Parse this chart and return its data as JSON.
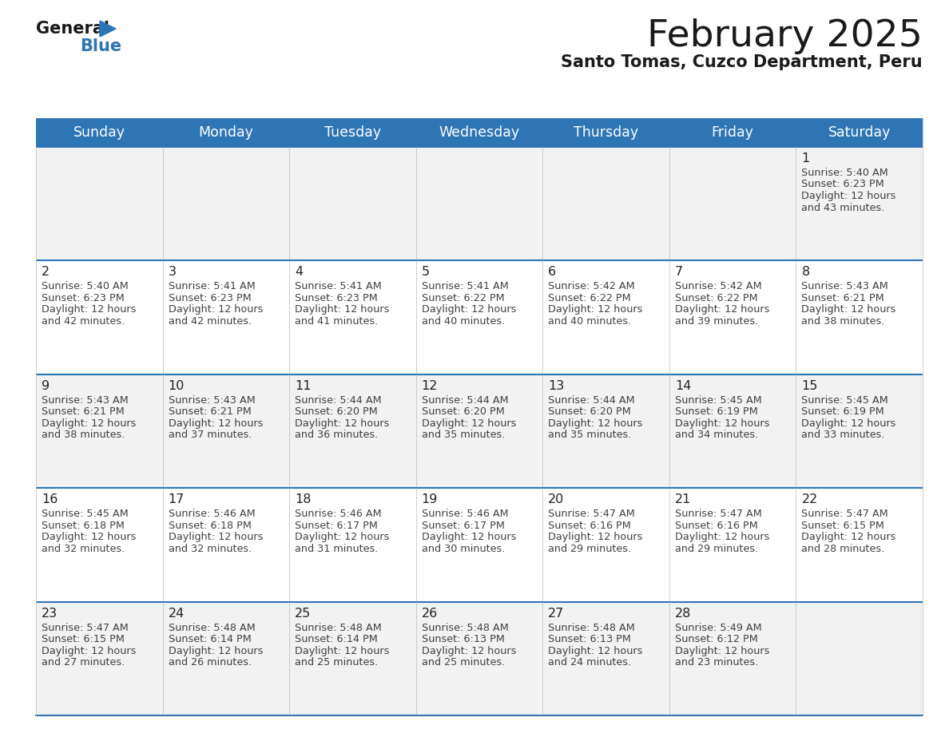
{
  "title": "February 2025",
  "subtitle": "Santo Tomas, Cuzco Department, Peru",
  "days_of_week": [
    "Sunday",
    "Monday",
    "Tuesday",
    "Wednesday",
    "Thursday",
    "Friday",
    "Saturday"
  ],
  "header_bg": "#2e75b6",
  "header_text": "#ffffff",
  "border_color": "#2e75b6",
  "row_bg_odd": "#f2f2f2",
  "row_bg_even": "#ffffff",
  "text_color": "#404040",
  "calendar": [
    [
      null,
      null,
      null,
      null,
      null,
      null,
      {
        "day": "1",
        "sunrise": "5:40 AM",
        "sunset": "6:23 PM",
        "daylight": "12 hours",
        "daylight2": "and 43 minutes."
      }
    ],
    [
      {
        "day": "2",
        "sunrise": "5:40 AM",
        "sunset": "6:23 PM",
        "daylight": "12 hours",
        "daylight2": "and 42 minutes."
      },
      {
        "day": "3",
        "sunrise": "5:41 AM",
        "sunset": "6:23 PM",
        "daylight": "12 hours",
        "daylight2": "and 42 minutes."
      },
      {
        "day": "4",
        "sunrise": "5:41 AM",
        "sunset": "6:23 PM",
        "daylight": "12 hours",
        "daylight2": "and 41 minutes."
      },
      {
        "day": "5",
        "sunrise": "5:41 AM",
        "sunset": "6:22 PM",
        "daylight": "12 hours",
        "daylight2": "and 40 minutes."
      },
      {
        "day": "6",
        "sunrise": "5:42 AM",
        "sunset": "6:22 PM",
        "daylight": "12 hours",
        "daylight2": "and 40 minutes."
      },
      {
        "day": "7",
        "sunrise": "5:42 AM",
        "sunset": "6:22 PM",
        "daylight": "12 hours",
        "daylight2": "and 39 minutes."
      },
      {
        "day": "8",
        "sunrise": "5:43 AM",
        "sunset": "6:21 PM",
        "daylight": "12 hours",
        "daylight2": "and 38 minutes."
      }
    ],
    [
      {
        "day": "9",
        "sunrise": "5:43 AM",
        "sunset": "6:21 PM",
        "daylight": "12 hours",
        "daylight2": "and 38 minutes."
      },
      {
        "day": "10",
        "sunrise": "5:43 AM",
        "sunset": "6:21 PM",
        "daylight": "12 hours",
        "daylight2": "and 37 minutes."
      },
      {
        "day": "11",
        "sunrise": "5:44 AM",
        "sunset": "6:20 PM",
        "daylight": "12 hours",
        "daylight2": "and 36 minutes."
      },
      {
        "day": "12",
        "sunrise": "5:44 AM",
        "sunset": "6:20 PM",
        "daylight": "12 hours",
        "daylight2": "and 35 minutes."
      },
      {
        "day": "13",
        "sunrise": "5:44 AM",
        "sunset": "6:20 PM",
        "daylight": "12 hours",
        "daylight2": "and 35 minutes."
      },
      {
        "day": "14",
        "sunrise": "5:45 AM",
        "sunset": "6:19 PM",
        "daylight": "12 hours",
        "daylight2": "and 34 minutes."
      },
      {
        "day": "15",
        "sunrise": "5:45 AM",
        "sunset": "6:19 PM",
        "daylight": "12 hours",
        "daylight2": "and 33 minutes."
      }
    ],
    [
      {
        "day": "16",
        "sunrise": "5:45 AM",
        "sunset": "6:18 PM",
        "daylight": "12 hours",
        "daylight2": "and 32 minutes."
      },
      {
        "day": "17",
        "sunrise": "5:46 AM",
        "sunset": "6:18 PM",
        "daylight": "12 hours",
        "daylight2": "and 32 minutes."
      },
      {
        "day": "18",
        "sunrise": "5:46 AM",
        "sunset": "6:17 PM",
        "daylight": "12 hours",
        "daylight2": "and 31 minutes."
      },
      {
        "day": "19",
        "sunrise": "5:46 AM",
        "sunset": "6:17 PM",
        "daylight": "12 hours",
        "daylight2": "and 30 minutes."
      },
      {
        "day": "20",
        "sunrise": "5:47 AM",
        "sunset": "6:16 PM",
        "daylight": "12 hours",
        "daylight2": "and 29 minutes."
      },
      {
        "day": "21",
        "sunrise": "5:47 AM",
        "sunset": "6:16 PM",
        "daylight": "12 hours",
        "daylight2": "and 29 minutes."
      },
      {
        "day": "22",
        "sunrise": "5:47 AM",
        "sunset": "6:15 PM",
        "daylight": "12 hours",
        "daylight2": "and 28 minutes."
      }
    ],
    [
      {
        "day": "23",
        "sunrise": "5:47 AM",
        "sunset": "6:15 PM",
        "daylight": "12 hours",
        "daylight2": "and 27 minutes."
      },
      {
        "day": "24",
        "sunrise": "5:48 AM",
        "sunset": "6:14 PM",
        "daylight": "12 hours",
        "daylight2": "and 26 minutes."
      },
      {
        "day": "25",
        "sunrise": "5:48 AM",
        "sunset": "6:14 PM",
        "daylight": "12 hours",
        "daylight2": "and 25 minutes."
      },
      {
        "day": "26",
        "sunrise": "5:48 AM",
        "sunset": "6:13 PM",
        "daylight": "12 hours",
        "daylight2": "and 25 minutes."
      },
      {
        "day": "27",
        "sunrise": "5:48 AM",
        "sunset": "6:13 PM",
        "daylight": "12 hours",
        "daylight2": "and 24 minutes."
      },
      {
        "day": "28",
        "sunrise": "5:49 AM",
        "sunset": "6:12 PM",
        "daylight": "12 hours",
        "daylight2": "and 23 minutes."
      },
      null
    ]
  ],
  "figsize": [
    11.88,
    9.18
  ],
  "dpi": 100
}
